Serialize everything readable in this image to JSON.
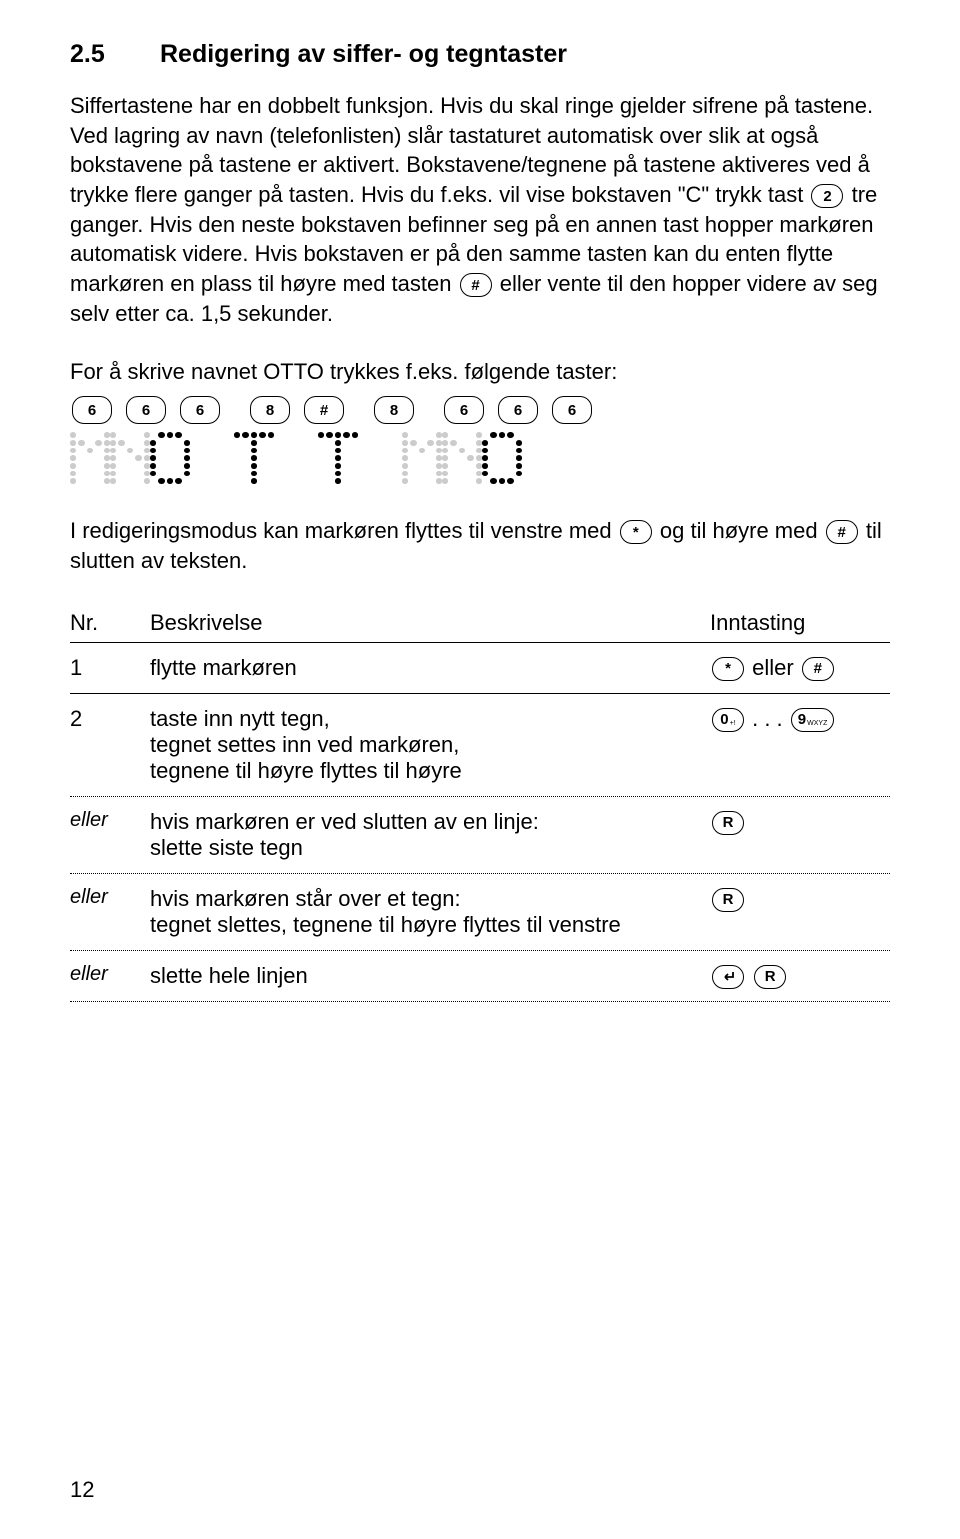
{
  "heading": {
    "number": "2.5",
    "title": "Redigering av siffer- og tegntaster"
  },
  "paragraph1_a": "Siffertastene har en dobbelt funksjon. Hvis du skal ringe gjelder sifrene på tastene. Ved lagring av navn (telefonlisten) slår tastaturet automatisk over slik at også bokstavene på tastene er aktivert. Bokstavene/tegnene på tastene aktiveres ved å trykke flere ganger på tasten. Hvis du f.eks. vil vise bokstaven \"C\" trykk tast ",
  "paragraph1_b": " tre ganger. Hvis den neste bokstaven befinner seg på en annen tast hopper markøren automatisk videre. Hvis bokstaven er på den samme tasten kan du enten flytte markøren en plass til høyre med tasten ",
  "paragraph1_c": " eller vente til den hopper videre av seg selv etter ca. 1,5 sekunder.",
  "key_2": "2",
  "key_hash": "#",
  "key_star": "*",
  "key_0": "0",
  "key_9": "9",
  "key_9_sub": "WXYZ",
  "key_0_sub": "+!",
  "key_R": "R",
  "para2": "For å skrive navnet OTTO trykkes f.eks. følgende taster:",
  "keyseq": [
    "6",
    "6",
    "6",
    "8",
    "#",
    "8",
    "6",
    "6",
    "6"
  ],
  "para3_a": "I redigeringsmodus kan markøren flyttes til venstre med ",
  "para3_b": " og til høyre med ",
  "para3_c": " til slutten av teksten.",
  "table": {
    "header": {
      "nr": "Nr.",
      "desc": "Beskrivelse",
      "inp": "Inntasting"
    },
    "rows": [
      {
        "nr": "1",
        "desc": "flytte markøren",
        "inp_text": " eller "
      },
      {
        "nr": "2",
        "desc": "taste inn nytt tegn,\ntegnet settes inn ved markøren,\ntegnene til høyre flyttes til høyre",
        "inp_dots": " . . . "
      },
      {
        "nr": "eller",
        "desc": "hvis markøren er ved slutten av en linje:\nslette siste tegn"
      },
      {
        "nr": "eller",
        "desc": "hvis markøren står over et tegn:\ntegnet slettes, tegnene til høyre flyttes til venstre"
      },
      {
        "nr": "eller",
        "desc": "slette hele linjen"
      }
    ]
  },
  "page_number": "12",
  "dotmatrix": {
    "M": "1000111011101011000110001100011000100000",
    "N": "1000111001101011001110001100011000100000",
    "O": "0111010001100011000110001100010111000000",
    "T": "1111100100001000010000100001000010000000"
  }
}
